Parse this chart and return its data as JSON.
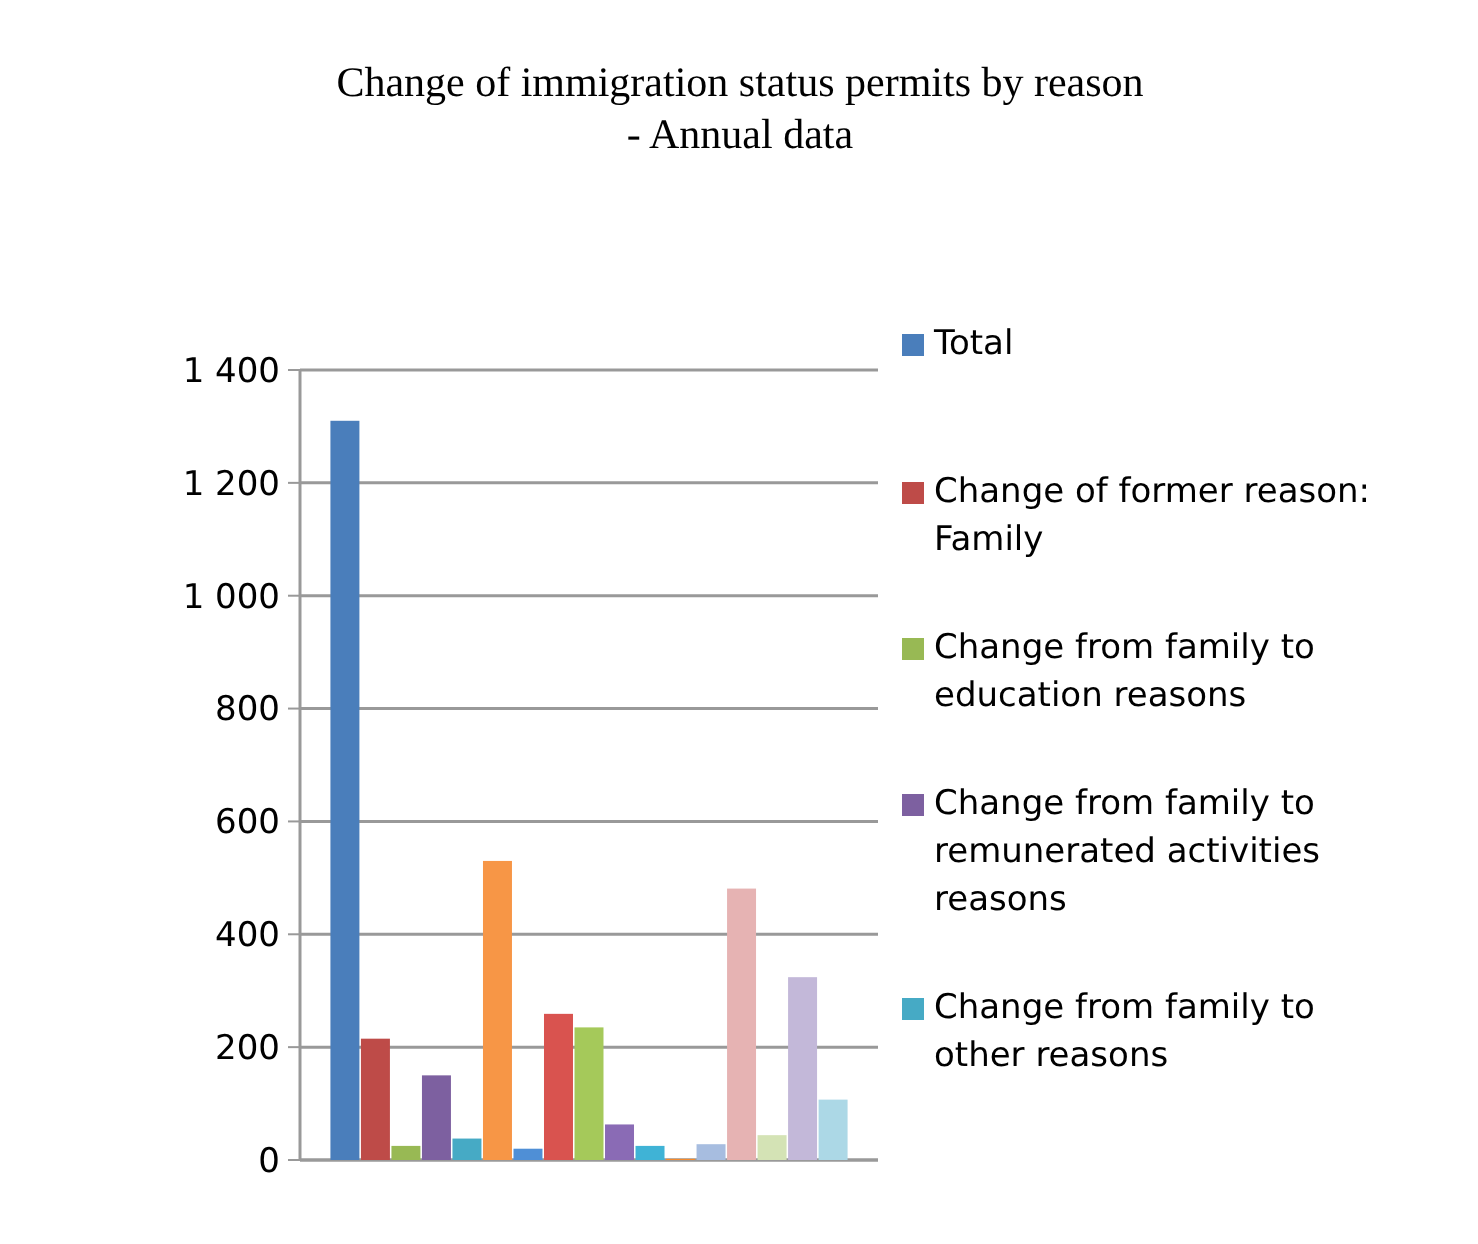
{
  "chart_data": {
    "type": "bar",
    "title": "Change of immigration status permits by reason\n- Annual data",
    "categories": [
      null
    ],
    "series": [
      {
        "name": "Total",
        "color": "#4a7ebb",
        "values": [
          1310
        ]
      },
      {
        "name": "Change of former reason: Family",
        "color": "#be4b48",
        "values": [
          215
        ]
      },
      {
        "name": "Change from family to education reasons",
        "color": "#98b954",
        "values": [
          25
        ]
      },
      {
        "name": "Change from family to remunerated activities reasons",
        "color": "#7d60a0",
        "values": [
          150
        ]
      },
      {
        "name": "Change from family to other reasons",
        "color": "#46aac5",
        "values": [
          38
        ]
      },
      {
        "color": "#f79646",
        "values": [
          530
        ]
      },
      {
        "color": "#4f8fd6",
        "values": [
          20
        ]
      },
      {
        "color": "#d9534f",
        "values": [
          259
        ]
      },
      {
        "color": "#a5c95a",
        "values": [
          235
        ]
      },
      {
        "color": "#8a6bb5",
        "values": [
          63
        ]
      },
      {
        "color": "#3fb3d6",
        "values": [
          25
        ]
      },
      {
        "color": "#f58a2c",
        "values": [
          2
        ]
      },
      {
        "color": "#a7bde0",
        "values": [
          28
        ]
      },
      {
        "color": "#e6b3b3",
        "values": [
          481
        ]
      },
      {
        "color": "#d4e3b5",
        "values": [
          44
        ]
      },
      {
        "color": "#c3b8d9",
        "values": [
          324
        ]
      },
      {
        "color": "#acd8e6",
        "values": [
          107
        ]
      }
    ],
    "ylim": [
      0,
      1400
    ],
    "yticks": [
      0,
      200,
      400,
      600,
      800,
      {
        "value": 1000,
        "label": "1 000"
      },
      {
        "value": 1200,
        "label": "1 200"
      },
      {
        "value": 1400,
        "label": "1 400"
      }
    ],
    "grid": "y",
    "legend": "right"
  }
}
